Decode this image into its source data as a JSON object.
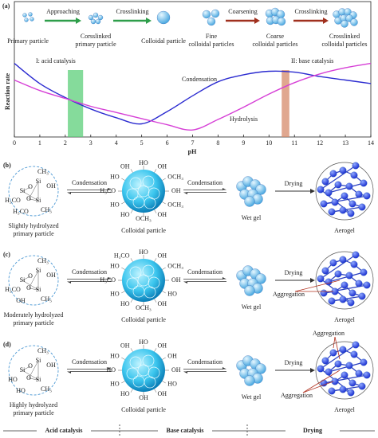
{
  "figure_label": "(a)",
  "chart_data": {
    "type": "line",
    "ylabel": "Reaction rate",
    "xlabel": "pH",
    "x": [
      0,
      1,
      2,
      3,
      4,
      5,
      6,
      7,
      8,
      9,
      10,
      11,
      12,
      13,
      14
    ],
    "xlim": [
      0,
      14
    ],
    "xticks": [
      0,
      1,
      2,
      3,
      4,
      5,
      6,
      7,
      8,
      9,
      10,
      11,
      12,
      13,
      14
    ],
    "ylim": [
      0,
      10
    ],
    "series": [
      {
        "name": "Condensation",
        "color": "#2b2bd0",
        "values": [
          8.4,
          6.1,
          4.5,
          3.2,
          2.2,
          1.5,
          2.9,
          4.7,
          6.3,
          7.1,
          7.5,
          7.4,
          6.9,
          6.5,
          6.1
        ]
      },
      {
        "name": "Hydrolysis",
        "color": "#d63fd6",
        "values": [
          6.5,
          5.3,
          4.4,
          3.5,
          2.8,
          2.1,
          1.4,
          0.8,
          2.0,
          3.4,
          4.9,
          6.2,
          7.2,
          7.9,
          8.4
        ]
      }
    ],
    "annotations": [
      {
        "label": "I: acid catalysis",
        "range": [
          2.1,
          2.7
        ],
        "color": "#5ccf7a"
      },
      {
        "label": "II: base catalysis",
        "range": [
          10.5,
          10.8
        ],
        "color": "#d58a6a"
      }
    ]
  },
  "top_schematic": {
    "particles": [
      {
        "label_lines": [
          "Primary particle"
        ]
      },
      {
        "label_lines": [
          "Corsslinked",
          "primary particle"
        ]
      },
      {
        "label_lines": [
          "Colloidal particle"
        ]
      },
      {
        "label_lines": [
          "Fine",
          "colloidal particles"
        ]
      },
      {
        "label_lines": [
          "Coarse",
          "colloidal particles"
        ]
      },
      {
        "label_lines": [
          "Crosslinked",
          "colloidal particles"
        ]
      }
    ],
    "arrows": [
      {
        "label": "Approaching",
        "color": "#2e9e4a"
      },
      {
        "label": "Crosslinking",
        "color": "#2e9e4a"
      },
      {
        "label": "Coarsening",
        "color": "#a0301e"
      },
      {
        "label": "Crosslinking",
        "color": "#a0301e"
      }
    ]
  },
  "panels": [
    {
      "label": "(b)",
      "primary_labels": [
        "CH₃",
        "OH",
        "Si",
        "Si",
        "Si",
        "O",
        "O",
        "H₃CO",
        "H₃CO",
        "CH₃"
      ],
      "primary_caption": [
        "Slightly hydrolyzed",
        "primary particle"
      ],
      "arrow1": "Condensation",
      "colloid_labels": [
        "HO",
        "OH",
        "OCH₃",
        "OH",
        "OCH₃",
        "OH",
        "OCH₃",
        "HO",
        "HO",
        "H₃CO",
        "HO",
        "OH"
      ],
      "colloid_caption": "Colloidal particle",
      "arrow2": "Condensation",
      "wetgel_caption": "Wet gel",
      "arrow3": "Drying",
      "aerogel_caption": "Aerogel",
      "aggregation": []
    },
    {
      "label": "(c)",
      "primary_labels": [
        "CH₃",
        "OH",
        "Si",
        "Si",
        "Si",
        "O",
        "O",
        "H₃CO",
        "OH",
        "CH₃"
      ],
      "primary_caption": [
        "Moderately hydrolyzed",
        "primary particle"
      ],
      "arrow1": "Condensation",
      "colloid_labels": [
        "HO",
        "OH",
        "OCH₃",
        "OH",
        "HO",
        "OH",
        "OCH₃",
        "HO",
        "HO",
        "H₃CO",
        "HO",
        "H₃CO"
      ],
      "colloid_caption": "Colloidal particle",
      "arrow2": "Condensation",
      "wetgel_caption": "Wet gel",
      "arrow3": "Drying",
      "aerogel_caption": "Aerogel",
      "aggregation": [
        "Aggregation"
      ]
    },
    {
      "label": "(d)",
      "primary_labels": [
        "CH₃",
        "OH",
        "Si",
        "Si",
        "Si",
        "O",
        "O",
        "HO",
        "HO",
        "CH₃"
      ],
      "primary_caption": [
        "Highly hydrolyzed",
        "primary particle"
      ],
      "arrow1": "Condensation",
      "colloid_labels": [
        "HO",
        "OH",
        "OH",
        "OH",
        "HO",
        "OH",
        "OH",
        "HO",
        "HO",
        "HO",
        "HO",
        "OH"
      ],
      "colloid_caption": "Colloidal particle",
      "arrow2": "Condensation",
      "wetgel_caption": "Wet gel",
      "arrow3": "Drying",
      "aerogel_caption": "Aerogel",
      "aggregation": [
        "Aggregation",
        "Aggregation"
      ]
    }
  ],
  "stages": [
    "Acid catalysis",
    "Base catalysis",
    "Drying"
  ]
}
